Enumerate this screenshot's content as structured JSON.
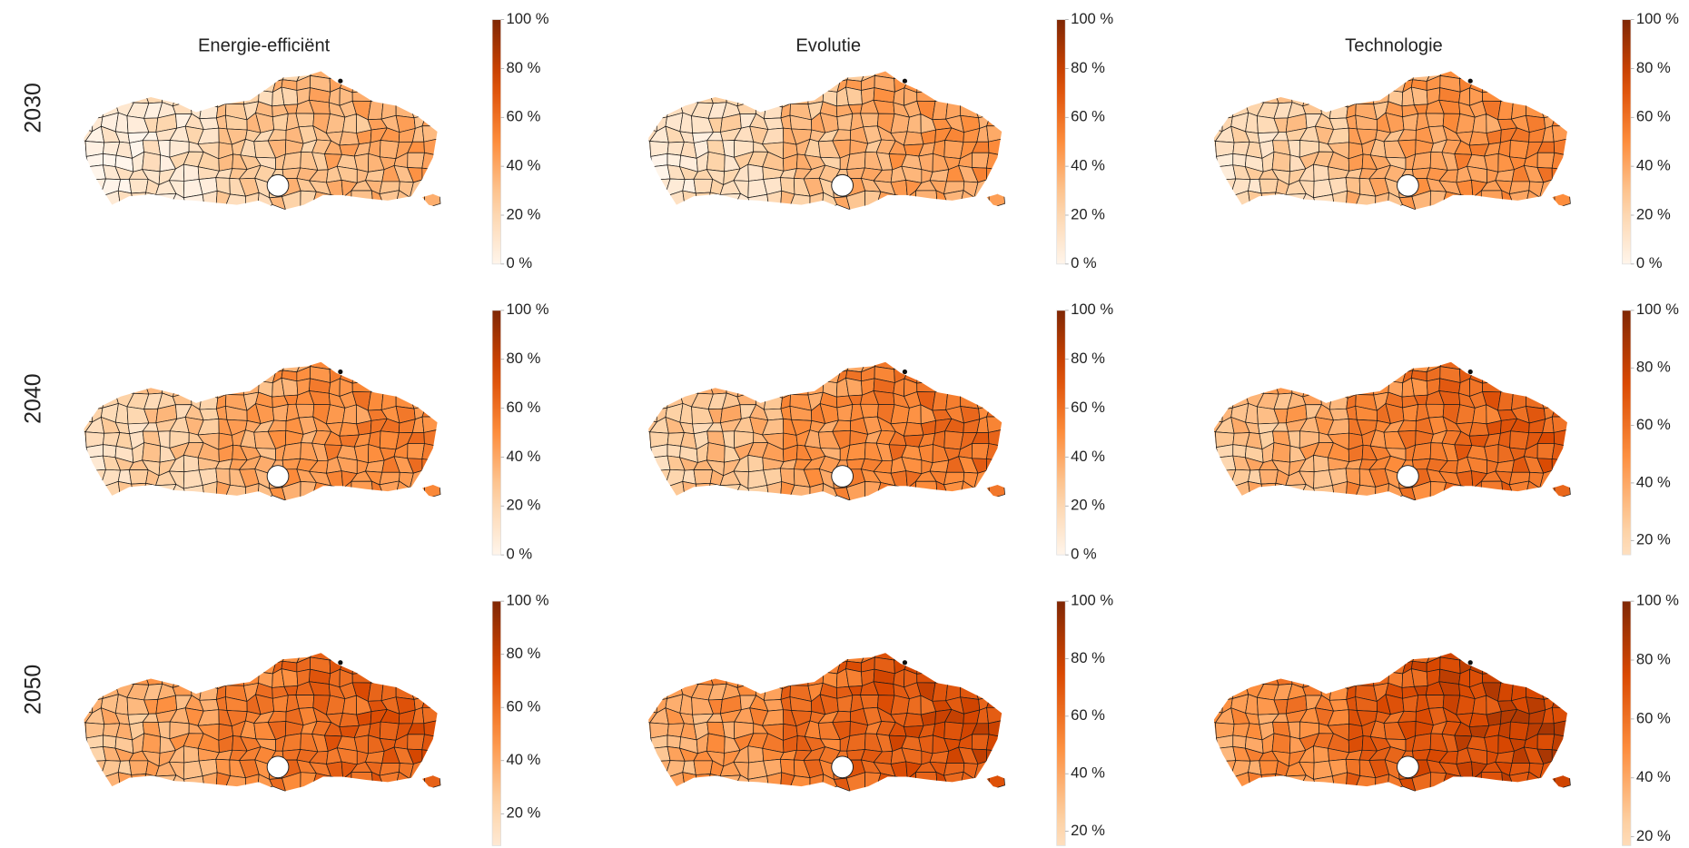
{
  "columns": [
    "Energie-efficiënt",
    "Evolutie",
    "Technologie"
  ],
  "rows": [
    "2030",
    "2040",
    "2050"
  ],
  "colors": [
    "#fff5eb",
    "#fdd0a2",
    "#fd8d3c",
    "#d94801",
    "#7f2704"
  ],
  "panels": [
    [
      {
        "range": [
          0,
          100
        ],
        "ticks": [
          {
            "value": 100,
            "label": "100 %"
          },
          {
            "value": 80,
            "label": "80 %"
          },
          {
            "value": 60,
            "label": "60 %"
          },
          {
            "value": 40,
            "label": "40 %"
          },
          {
            "value": 20,
            "label": "20 %"
          },
          {
            "value": 0,
            "label": "0 %"
          }
        ]
      },
      {
        "range": [
          0,
          100
        ],
        "ticks": [
          {
            "value": 100,
            "label": "100 %"
          },
          {
            "value": 80,
            "label": "80 %"
          },
          {
            "value": 60,
            "label": "60 %"
          },
          {
            "value": 40,
            "label": "40 %"
          },
          {
            "value": 20,
            "label": "20 %"
          },
          {
            "value": 0,
            "label": "0 %"
          }
        ]
      },
      {
        "range": [
          0,
          100
        ],
        "ticks": [
          {
            "value": 100,
            "label": "100 %"
          },
          {
            "value": 80,
            "label": "80 %"
          },
          {
            "value": 60,
            "label": "60 %"
          },
          {
            "value": 40,
            "label": "40 %"
          },
          {
            "value": 20,
            "label": "20 %"
          },
          {
            "value": 0,
            "label": "0 %"
          }
        ]
      }
    ],
    [
      {
        "range": [
          0,
          100
        ],
        "ticks": [
          {
            "value": 100,
            "label": "100 %"
          },
          {
            "value": 80,
            "label": "80 %"
          },
          {
            "value": 60,
            "label": "60 %"
          },
          {
            "value": 40,
            "label": "40 %"
          },
          {
            "value": 20,
            "label": "20 %"
          },
          {
            "value": 0,
            "label": "0 %"
          }
        ]
      },
      {
        "range": [
          0,
          100
        ],
        "ticks": [
          {
            "value": 100,
            "label": "100 %"
          },
          {
            "value": 80,
            "label": "80 %"
          },
          {
            "value": 60,
            "label": "60 %"
          },
          {
            "value": 40,
            "label": "40 %"
          },
          {
            "value": 20,
            "label": "20 %"
          },
          {
            "value": 0,
            "label": "0 %"
          }
        ]
      },
      {
        "range": [
          15,
          100
        ],
        "ticks": [
          {
            "value": 100,
            "label": "100 %"
          },
          {
            "value": 80,
            "label": "80 %"
          },
          {
            "value": 60,
            "label": "60 %"
          },
          {
            "value": 40,
            "label": "40 %"
          },
          {
            "value": 20,
            "label": "20 %"
          }
        ]
      }
    ],
    [
      {
        "range": [
          8,
          100
        ],
        "ticks": [
          {
            "value": 100,
            "label": "100 %"
          },
          {
            "value": 80,
            "label": "80 %"
          },
          {
            "value": 60,
            "label": "60 %"
          },
          {
            "value": 40,
            "label": "40 %"
          },
          {
            "value": 20,
            "label": "20 %"
          }
        ]
      },
      {
        "range": [
          15,
          100
        ],
        "ticks": [
          {
            "value": 100,
            "label": "100 %"
          },
          {
            "value": 80,
            "label": "80 %"
          },
          {
            "value": 60,
            "label": "60 %"
          },
          {
            "value": 40,
            "label": "40 %"
          },
          {
            "value": 20,
            "label": "20 %"
          }
        ]
      },
      {
        "range": [
          17,
          100
        ],
        "ticks": [
          {
            "value": 100,
            "label": "100 %"
          },
          {
            "value": 80,
            "label": "80 %"
          },
          {
            "value": 60,
            "label": "60 %"
          },
          {
            "value": 40,
            "label": "40 %"
          },
          {
            "value": 20,
            "label": "20 %"
          }
        ]
      }
    ]
  ]
}
